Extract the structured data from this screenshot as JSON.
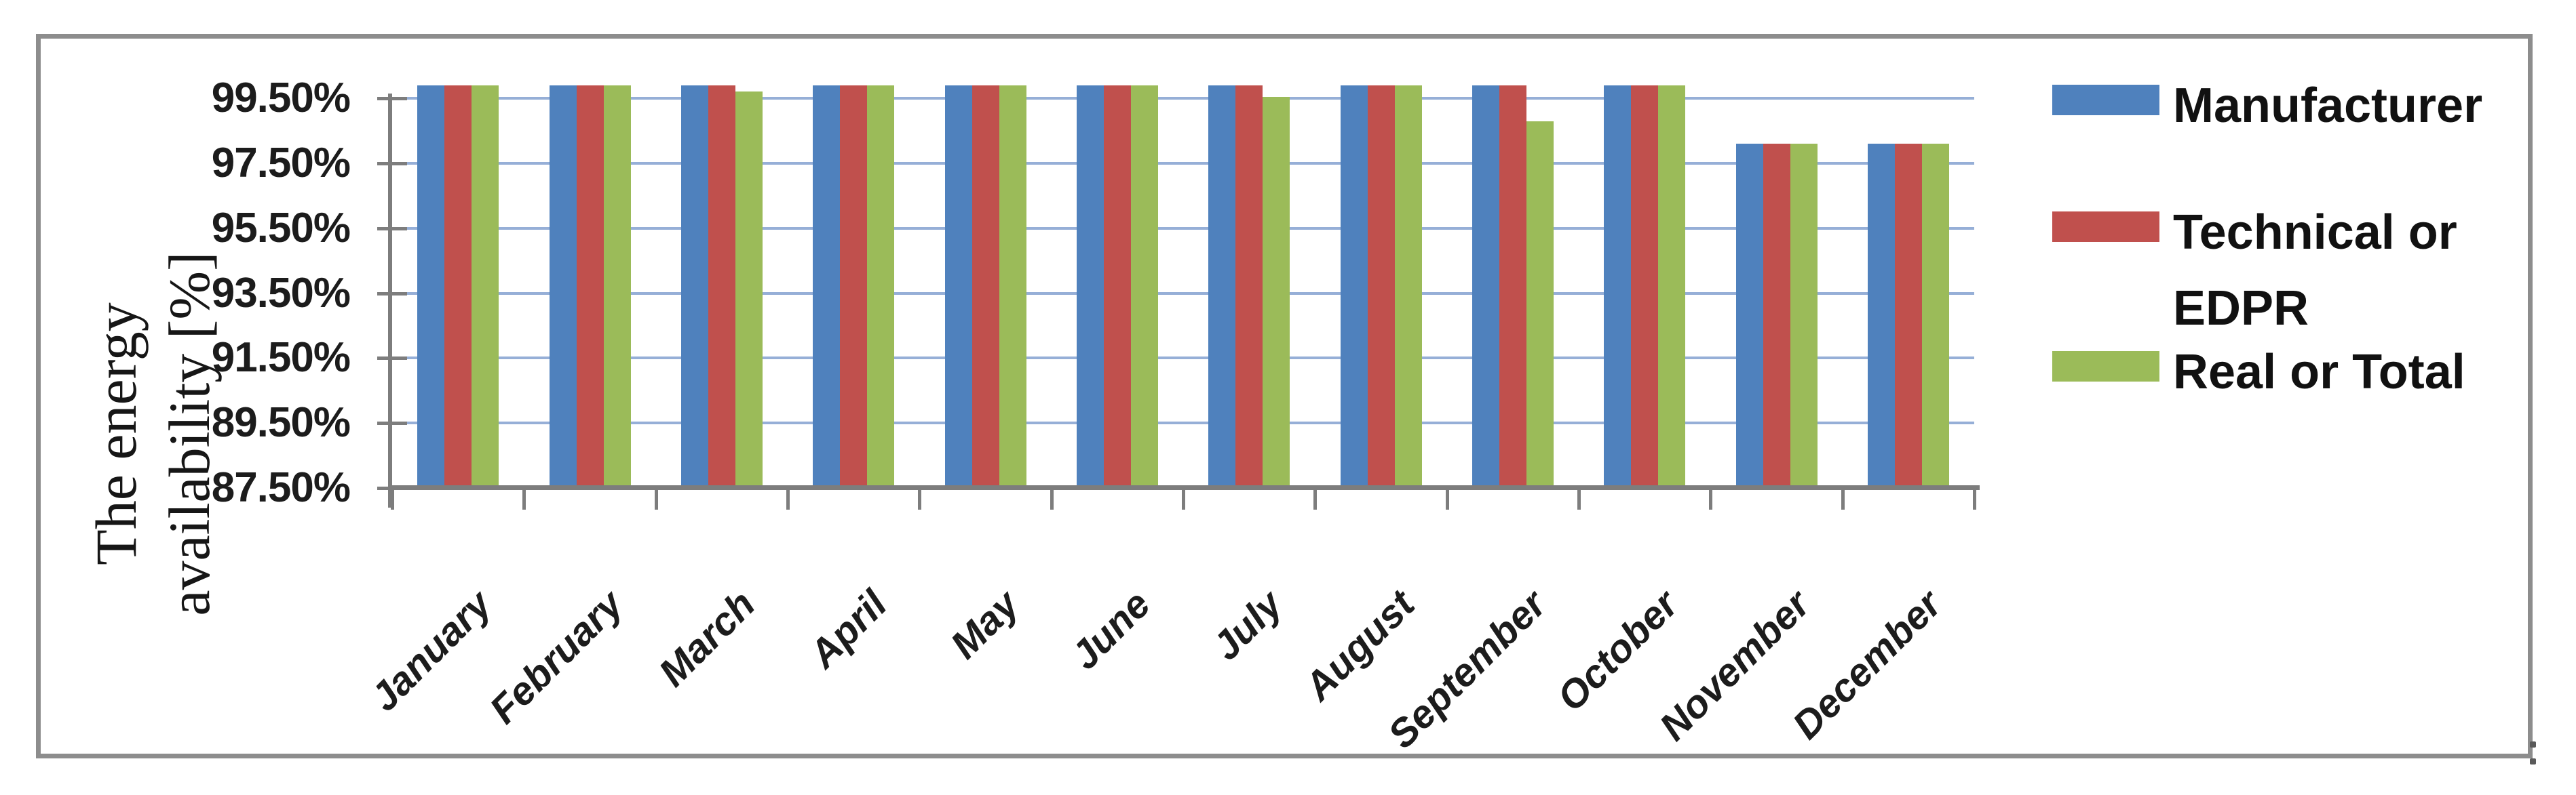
{
  "figure": {
    "background_color": "#ffffff",
    "border_color": "#8d8d8d"
  },
  "ytitle": {
    "line1": "The energy",
    "line2": "availability [%]"
  },
  "chart_data": {
    "type": "bar",
    "title": "",
    "xlabel": "",
    "ylabel": "The energy availability [%]",
    "categories": [
      "January",
      "February",
      "March",
      "April",
      "May",
      "June",
      "July",
      "August",
      "September",
      "October",
      "November",
      "December"
    ],
    "series": [
      {
        "name": "Manufacturer",
        "color": "#4f81bd",
        "values": [
          99.9,
          99.9,
          99.9,
          99.9,
          99.9,
          99.9,
          99.9,
          99.9,
          99.9,
          99.9,
          98.1,
          98.1
        ]
      },
      {
        "name": "Technical or EDPR",
        "color": "#c0504d",
        "values": [
          99.9,
          99.9,
          99.9,
          99.9,
          99.9,
          99.9,
          99.9,
          99.9,
          99.9,
          99.9,
          98.1,
          98.1
        ]
      },
      {
        "name": "Real or Total",
        "color": "#9bbb59",
        "values": [
          99.9,
          99.9,
          99.7,
          99.9,
          99.9,
          99.9,
          99.55,
          99.9,
          98.8,
          99.9,
          98.1,
          98.1
        ]
      }
    ],
    "y_ticks": [
      {
        "label": "99.50%",
        "value": 99.5
      },
      {
        "label": "97.50%",
        "value": 97.5
      },
      {
        "label": "95.50%",
        "value": 95.5
      },
      {
        "label": "93.50%",
        "value": 93.5
      },
      {
        "label": "91.50%",
        "value": 91.5
      },
      {
        "label": "89.50%",
        "value": 89.5
      },
      {
        "label": "87.50%",
        "value": 87.5
      }
    ],
    "ylim": [
      87.5,
      100.3
    ],
    "grid": true,
    "gridline_color": "#96afd7",
    "legend_position": "right-outside"
  },
  "legend": {
    "items": [
      {
        "label": "Manufacturer",
        "color": "#4f81bd"
      },
      {
        "label": "Technical or EDPR",
        "color": "#c0504d"
      },
      {
        "label": "Real or Total",
        "color": "#9bbb59"
      }
    ]
  }
}
